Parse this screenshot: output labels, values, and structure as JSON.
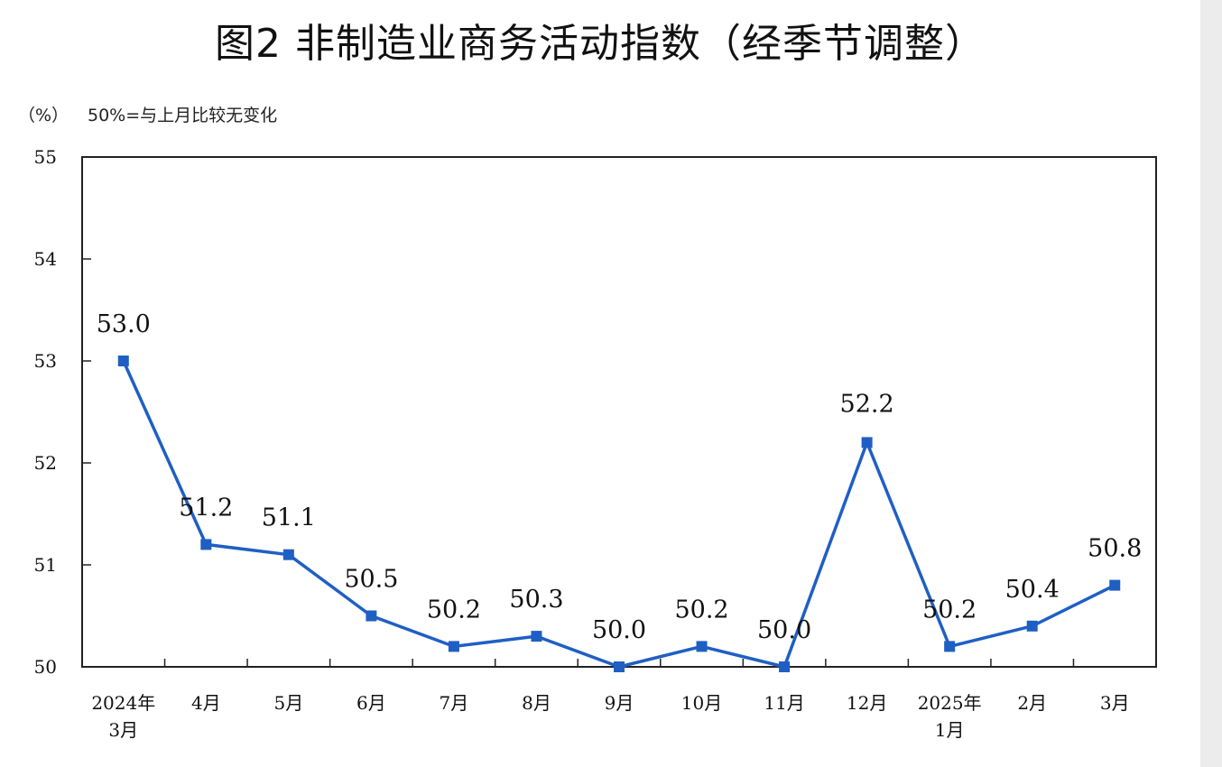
{
  "title": "图2  非制造业商务活动指数（经季节调整）",
  "unit_label": "（%）",
  "note": "50%=与上月比较无变化",
  "colors": {
    "series": "#1f5fc4",
    "axis": "#222222"
  },
  "chart_data": {
    "type": "line",
    "categories": [
      [
        "2024年",
        "3月"
      ],
      [
        "4月"
      ],
      [
        "5月"
      ],
      [
        "6月"
      ],
      [
        "7月"
      ],
      [
        "8月"
      ],
      [
        "9月"
      ],
      [
        "10月"
      ],
      [
        "11月"
      ],
      [
        "12月"
      ],
      [
        "2025年",
        "1月"
      ],
      [
        "2月"
      ],
      [
        "3月"
      ]
    ],
    "series": [
      {
        "values": [
          53.0,
          51.2,
          51.1,
          50.5,
          50.2,
          50.3,
          50.0,
          50.2,
          50.0,
          52.2,
          50.2,
          50.4,
          50.8
        ],
        "labels": [
          "53.0",
          "51.2",
          "51.1",
          "50.5",
          "50.2",
          "50.3",
          "50.0",
          "50.2",
          "50.0",
          "52.2",
          "50.2",
          "50.4",
          "50.8"
        ],
        "marker": "square"
      }
    ],
    "ylim": [
      50,
      55
    ],
    "yticks": [
      "50",
      "51",
      "52",
      "53",
      "54",
      "55"
    ],
    "grid": false,
    "legend": "none"
  }
}
